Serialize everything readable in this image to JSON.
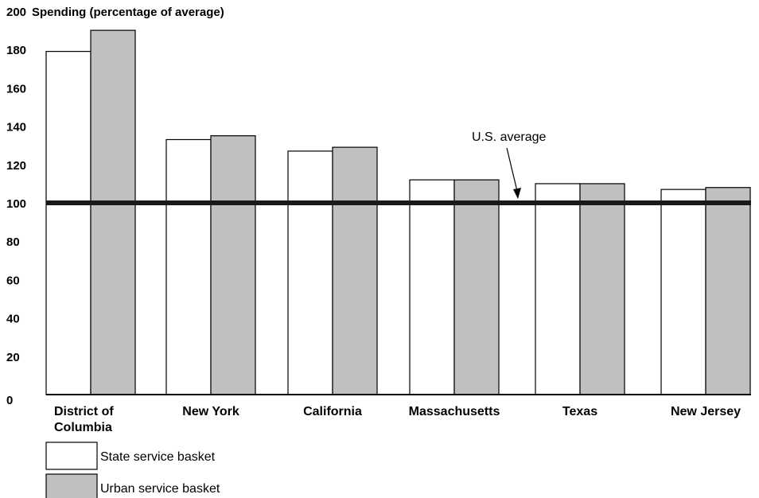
{
  "chart_data": {
    "type": "bar",
    "ylabel": "Spending (percentage of average)",
    "ylim": [
      0,
      200
    ],
    "yticks": [
      "0",
      "20",
      "40",
      "60",
      "80",
      "100",
      "120",
      "140",
      "160",
      "180",
      "200"
    ],
    "categories": [
      "District of Columbia",
      "New York",
      "California",
      "Massachusetts",
      "Texas",
      "New Jersey"
    ],
    "category_labels": [
      [
        "District of",
        "Columbia"
      ],
      [
        "New York"
      ],
      [
        "California"
      ],
      [
        "Massachusetts"
      ],
      [
        "Texas"
      ],
      [
        "New Jersey"
      ]
    ],
    "series": [
      {
        "name": "State service basket",
        "values": [
          179,
          133,
          127,
          112,
          110,
          107
        ],
        "fill": "#ffffff"
      },
      {
        "name": "Urban service basket",
        "values": [
          190,
          135,
          129,
          112,
          110,
          108
        ],
        "fill": "#bfc0c2"
      }
    ],
    "reference_line": {
      "value": 100,
      "label": "U.S. average",
      "color": "#1a1a1a"
    },
    "legend_position": "bottom-left",
    "grid": false
  }
}
